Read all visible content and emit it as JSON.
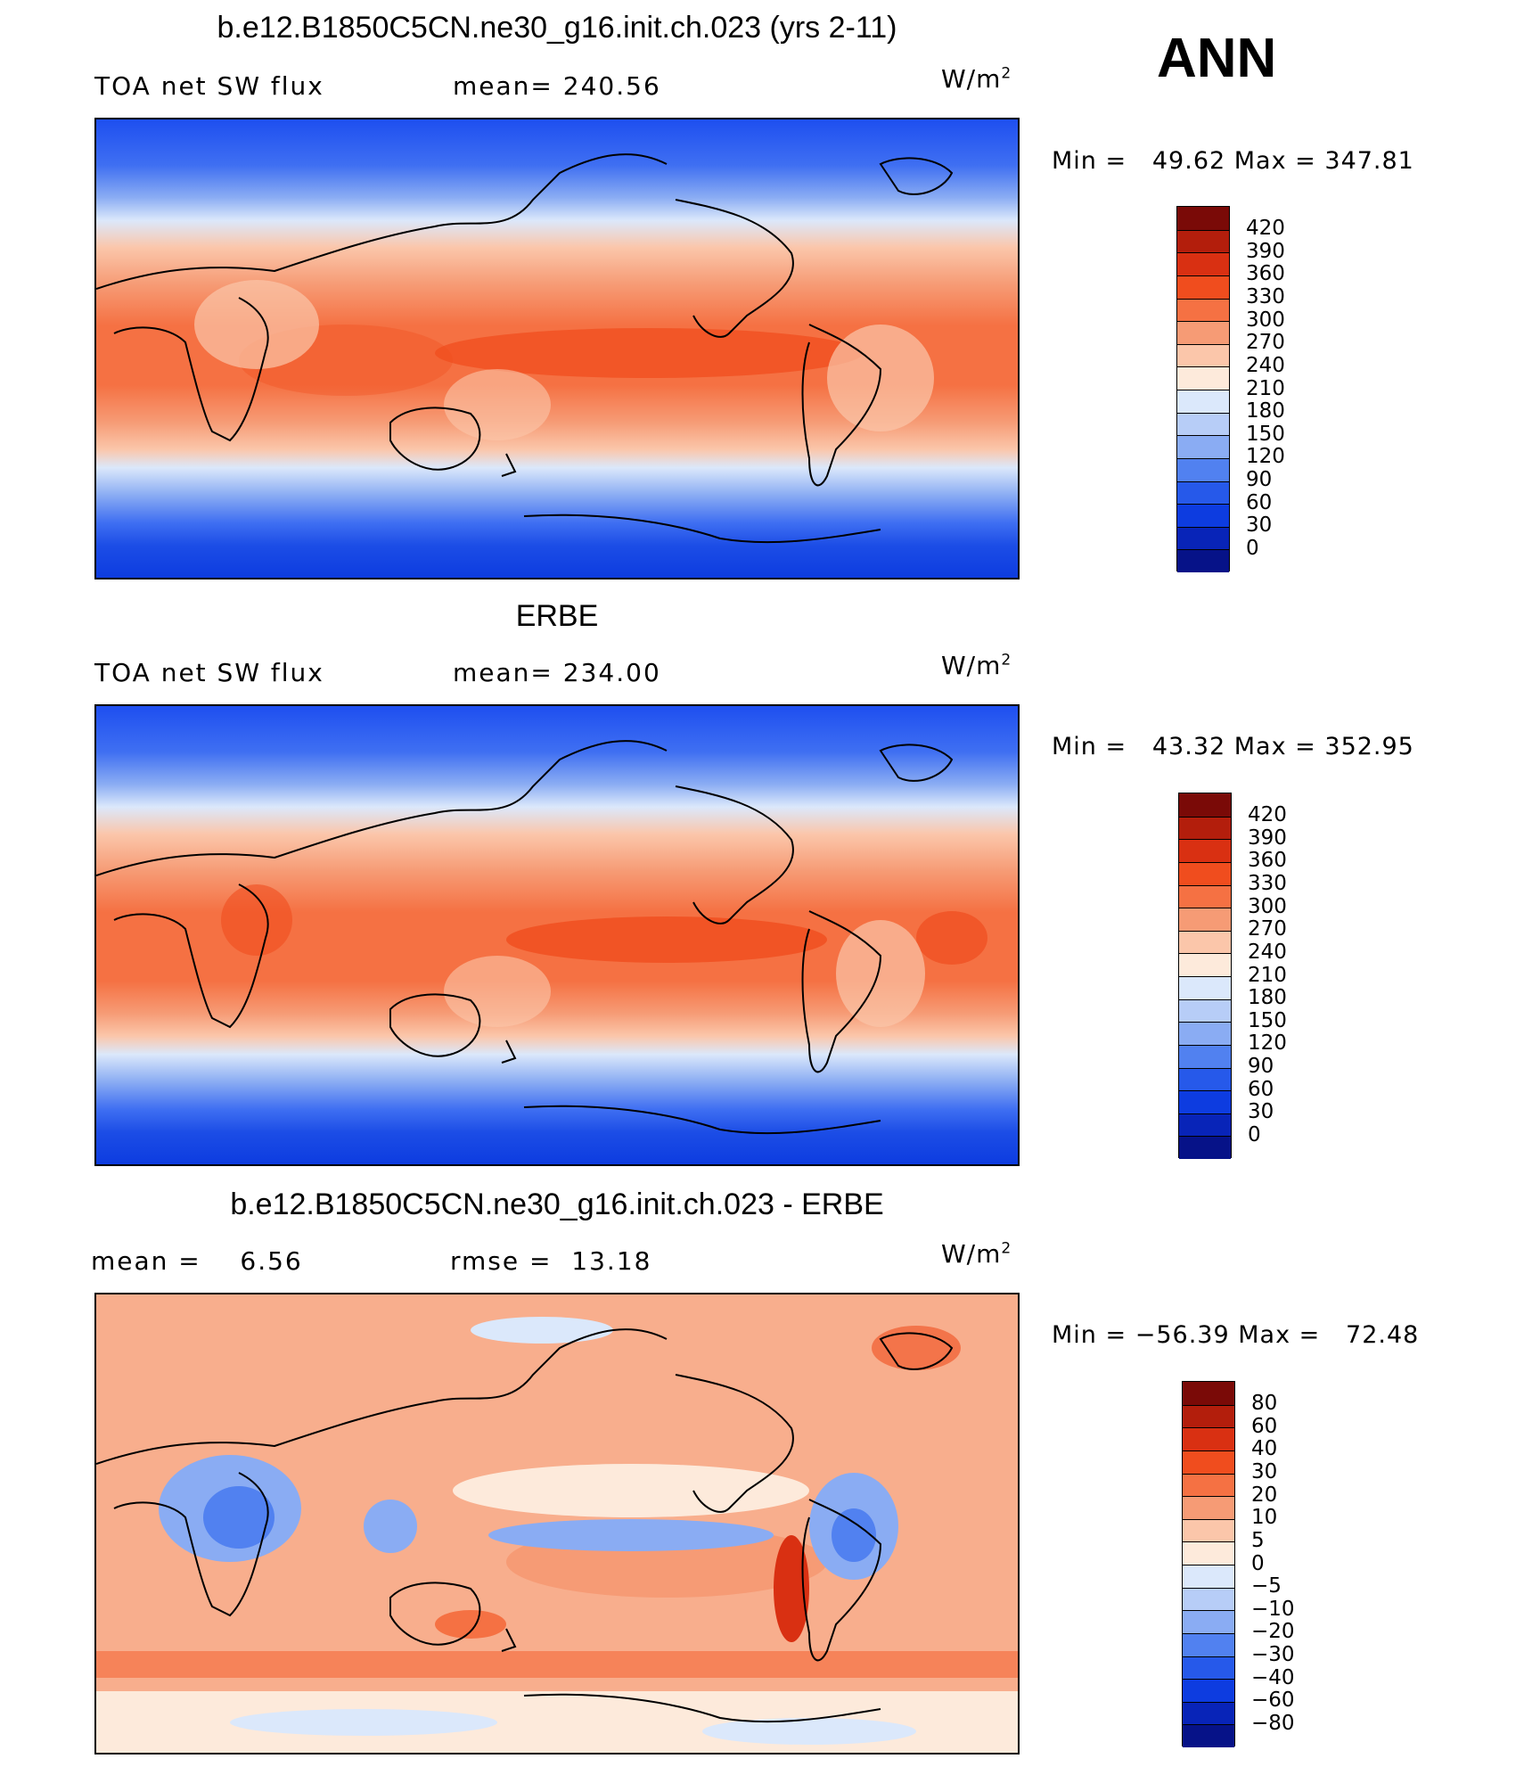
{
  "season": "ANN",
  "units_label": "W/m",
  "units_power": "2",
  "panels": [
    {
      "title": "b.e12.B1850C5CN.ne30_g16.init.ch.023 (yrs 2-11)",
      "variable": "TOA net SW flux",
      "stat_label": "mean=",
      "stat_value": "240.56",
      "min_label": "Min =",
      "min_value": "49.62",
      "max_label": "Max =",
      "max_value": "347.81",
      "colorbar": {
        "ticks": [
          "420",
          "390",
          "360",
          "330",
          "300",
          "270",
          "240",
          "210",
          "180",
          "150",
          "120",
          "90",
          "60",
          "30",
          "0"
        ],
        "colors": [
          "#7a0a07",
          "#b31e0c",
          "#d93012",
          "#f04d1e",
          "#f57143",
          "#f69b75",
          "#fbc6aa",
          "#fdeadb",
          "#dbe8fb",
          "#b7cdf7",
          "#8aacf3",
          "#5181f0",
          "#2659ea",
          "#0d3ce0",
          "#0824b8",
          "#061288"
        ]
      }
    },
    {
      "title": "ERBE",
      "variable": "TOA net SW flux",
      "stat_label": "mean=",
      "stat_value": "234.00",
      "min_label": "Min =",
      "min_value": "43.32",
      "max_label": "Max =",
      "max_value": "352.95",
      "colorbar": {
        "ticks": [
          "420",
          "390",
          "360",
          "330",
          "300",
          "270",
          "240",
          "210",
          "180",
          "150",
          "120",
          "90",
          "60",
          "30",
          "0"
        ],
        "colors": [
          "#7a0a07",
          "#b31e0c",
          "#d93012",
          "#f04d1e",
          "#f57143",
          "#f69b75",
          "#fbc6aa",
          "#fdeadb",
          "#dbe8fb",
          "#b7cdf7",
          "#8aacf3",
          "#5181f0",
          "#2659ea",
          "#0d3ce0",
          "#0824b8",
          "#061288"
        ]
      }
    },
    {
      "title": "b.e12.B1850C5CN.ne30_g16.init.ch.023 - ERBE",
      "variable": "mean =",
      "stat_label": "rmse =",
      "stat_value": "13.18",
      "mean_value": "6.56",
      "min_label": "Min =",
      "min_value": "−56.39",
      "max_label": "Max =",
      "max_value": "72.48",
      "colorbar": {
        "ticks": [
          "80",
          "60",
          "40",
          "30",
          "20",
          "10",
          "5",
          "0",
          "−5",
          "−10",
          "−20",
          "−30",
          "−40",
          "−60",
          "−80"
        ],
        "colors": [
          "#7a0a07",
          "#b31e0c",
          "#d93012",
          "#f04d1e",
          "#f57143",
          "#f69b75",
          "#fbc6aa",
          "#fdeadb",
          "#dbe8fb",
          "#b7cdf7",
          "#8aacf3",
          "#5181f0",
          "#2659ea",
          "#0d3ce0",
          "#0824b8",
          "#061288"
        ]
      }
    }
  ]
}
